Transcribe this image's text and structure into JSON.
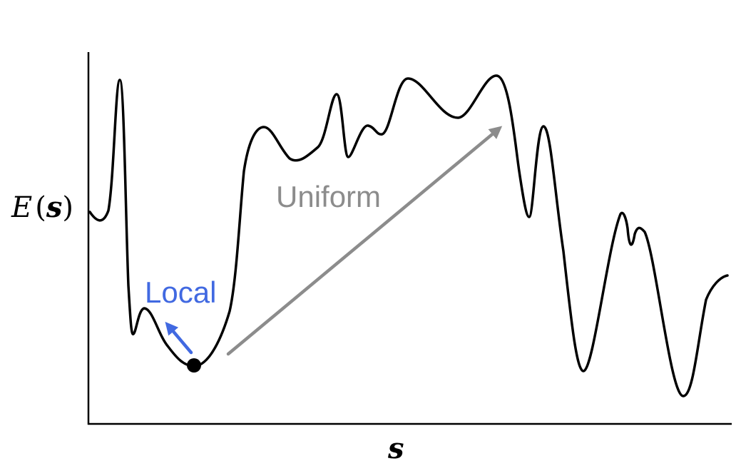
{
  "axes": {
    "y_label_function": "E",
    "y_label_open": "(",
    "y_label_variable": "s",
    "y_label_close": ")",
    "x_label": "s"
  },
  "moves": {
    "local": {
      "label": "Local",
      "color": "#4169e1"
    },
    "uniform": {
      "label": "Uniform",
      "color": "#8c8c8c"
    }
  },
  "colors": {
    "curve": "#000000",
    "axes": "#000000",
    "current_state": "#000000"
  }
}
